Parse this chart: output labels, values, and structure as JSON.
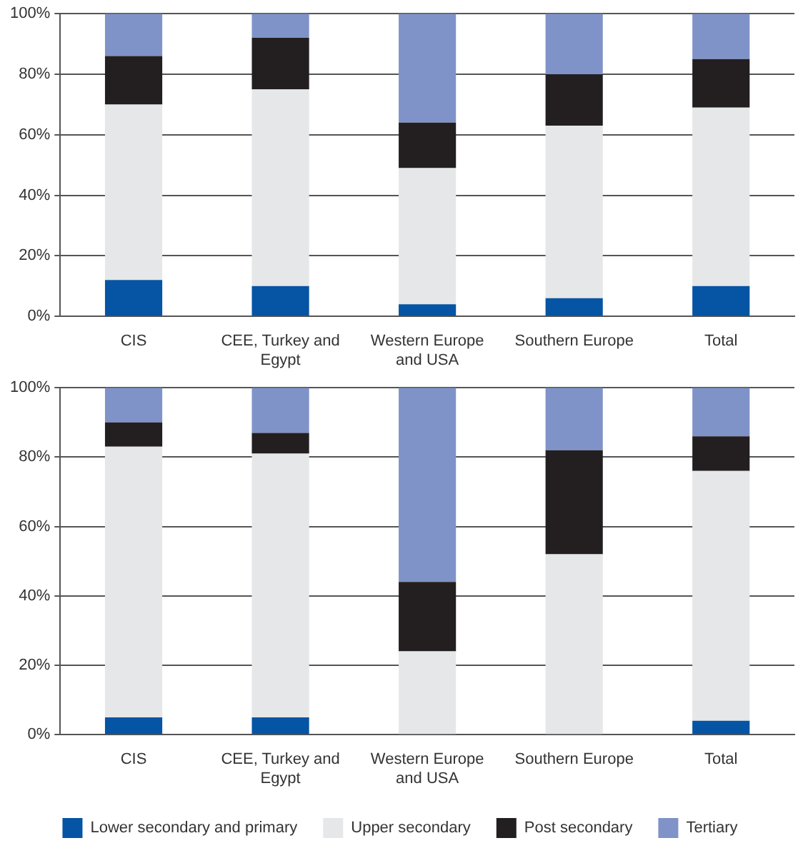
{
  "chart_data": [
    {
      "type": "bar",
      "stacked": true,
      "categories": [
        "CIS",
        "CEE, Turkey and Egypt",
        "Western Europe and USA",
        "Southern Europe",
        "Total"
      ],
      "series": [
        {
          "color": "#0654a4",
          "values": [
            12,
            10,
            4,
            6,
            10
          ]
        },
        {
          "color": "#e6e7e8",
          "values": [
            58,
            65,
            45,
            57,
            59
          ]
        },
        {
          "color": "#231f20",
          "values": [
            16,
            17,
            15,
            17,
            16
          ]
        },
        {
          "color": "#7f93c8",
          "values": [
            14,
            8,
            36,
            20,
            15
          ]
        }
      ],
      "ylim": [
        0,
        100
      ],
      "yticks": [
        {
          "value": 0,
          "label": "0%"
        },
        {
          "value": 20,
          "label": "20%"
        },
        {
          "value": 40,
          "label": "40%"
        },
        {
          "value": 60,
          "label": "60%"
        },
        {
          "value": 80,
          "label": "80%"
        },
        {
          "value": 100,
          "label": "100%"
        }
      ],
      "grid": "y",
      "legend": false
    },
    {
      "type": "bar",
      "stacked": true,
      "categories": [
        "CIS",
        "CEE, Turkey and Egypt",
        "Western Europe and USA",
        "Southern Europe",
        "Total"
      ],
      "series": [
        {
          "name": "Lower secondary and primary",
          "color": "#0654a4",
          "values": [
            5,
            5,
            0,
            0,
            4
          ]
        },
        {
          "name": "Upper secondary",
          "color": "#e6e7e8",
          "values": [
            78,
            76,
            24,
            52,
            72
          ]
        },
        {
          "name": "Post secondary",
          "color": "#231f20",
          "values": [
            7,
            6,
            20,
            30,
            10
          ]
        },
        {
          "name": "Tertiary",
          "color": "#7f93c8",
          "values": [
            10,
            13,
            56,
            18,
            14
          ]
        }
      ],
      "ylim": [
        0,
        100
      ],
      "yticks": [
        {
          "value": 0,
          "label": "0%"
        },
        {
          "value": 20,
          "label": "20%"
        },
        {
          "value": 40,
          "label": "40%"
        },
        {
          "value": 60,
          "label": "60%"
        },
        {
          "value": 80,
          "label": "80%"
        },
        {
          "value": 100,
          "label": "100%"
        }
      ],
      "grid": "y",
      "legend": "bottom"
    }
  ]
}
